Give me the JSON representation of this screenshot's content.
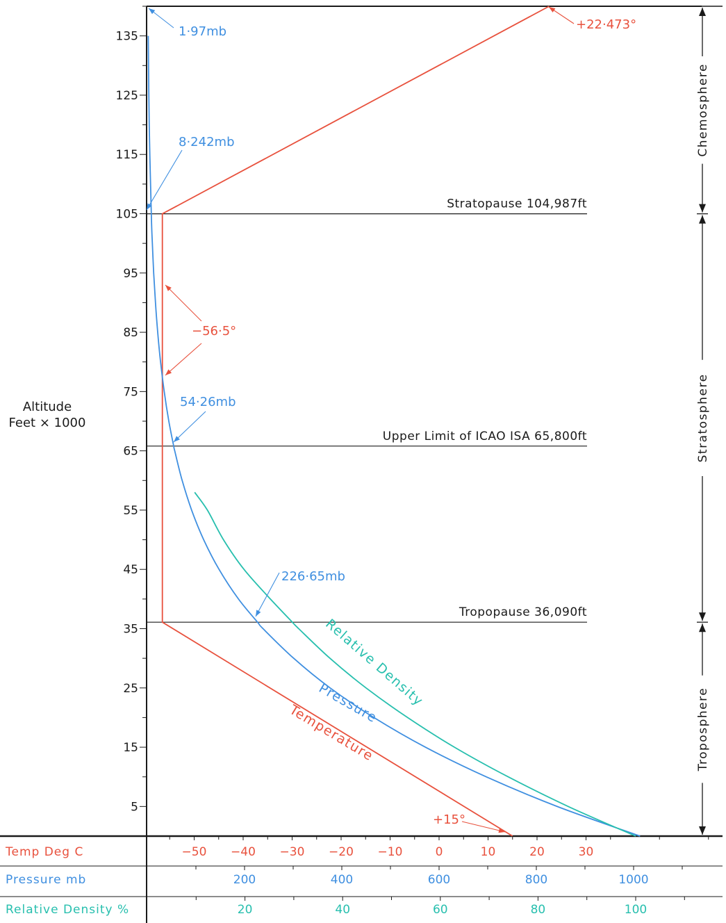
{
  "colors": {
    "temperature": "#e8513d",
    "pressure": "#3f8fe0",
    "density": "#27bfae",
    "ink": "#1a1a1a"
  },
  "chart_data": {
    "type": "line",
    "title": "",
    "ylabel_line1": "Altitude",
    "ylabel_line2": "Feet × 1000",
    "ylim": [
      0,
      140
    ],
    "yticks": [
      5,
      15,
      25,
      35,
      45,
      55,
      65,
      75,
      85,
      95,
      105,
      115,
      125,
      135
    ],
    "axes": {
      "temperature": {
        "label": "Temp Deg C",
        "ticks": [
          -50,
          -40,
          -30,
          -20,
          -10,
          0,
          10,
          20,
          30
        ],
        "tick_labels": [
          "−50",
          "−40",
          "−30",
          "−20",
          "−10",
          "0",
          "10",
          "20",
          "30"
        ]
      },
      "pressure": {
        "label": "Pressure mb",
        "ticks": [
          200,
          400,
          600,
          800,
          1000
        ],
        "tick_labels": [
          "200",
          "400",
          "600",
          "800",
          "1000"
        ]
      },
      "density": {
        "label": "Relative Density %",
        "ticks": [
          20,
          40,
          60,
          80,
          100
        ],
        "tick_labels": [
          "20",
          "40",
          "60",
          "80",
          "100"
        ]
      }
    },
    "series": [
      {
        "name": "Temperature",
        "axis": "temperature",
        "points": [
          [
            15,
            0
          ],
          [
            -56.5,
            36.09
          ],
          [
            -56.5,
            104.987
          ],
          [
            22.473,
            140
          ]
        ]
      },
      {
        "name": "Pressure",
        "axis": "pressure",
        "points": [
          [
            1013.25,
            0
          ],
          [
            843,
            5
          ],
          [
            697,
            10
          ],
          [
            572,
            15
          ],
          [
            466,
            20
          ],
          [
            376,
            25
          ],
          [
            301,
            30
          ],
          [
            238,
            35
          ],
          [
            226.65,
            36.09
          ],
          [
            187.5,
            40
          ],
          [
            147.5,
            45
          ],
          [
            116,
            50
          ],
          [
            91.2,
            55
          ],
          [
            71.7,
            60
          ],
          [
            56.4,
            65
          ],
          [
            54.26,
            65.8
          ],
          [
            44.3,
            70
          ],
          [
            34.8,
            75
          ],
          [
            27.3,
            80
          ],
          [
            21.4,
            85
          ],
          [
            16.8,
            90
          ],
          [
            13.2,
            95
          ],
          [
            10.4,
            100
          ],
          [
            8.242,
            104.987
          ],
          [
            4.0,
            120
          ],
          [
            1.97,
            135
          ]
        ]
      },
      {
        "name": "Relative Density",
        "axis": "density",
        "points": [
          [
            100,
            0
          ],
          [
            86.2,
            5
          ],
          [
            73.9,
            10
          ],
          [
            62.9,
            15
          ],
          [
            53.3,
            20
          ],
          [
            44.8,
            25
          ],
          [
            37.4,
            30
          ],
          [
            31.0,
            35
          ],
          [
            29.7,
            36.09
          ],
          [
            25.2,
            40
          ],
          [
            19.8,
            45
          ],
          [
            15.6,
            50
          ],
          [
            12.3,
            55
          ],
          [
            9.7,
            58
          ]
        ]
      }
    ],
    "reference_lines": [
      {
        "altitude": 104.987,
        "label": "Stratopause 104,987ft"
      },
      {
        "altitude": 65.8,
        "label": "Upper Limit of ICAO ISA 65,800ft"
      },
      {
        "altitude": 36.09,
        "label": "Tropopause 36,090ft"
      }
    ],
    "layers": [
      {
        "name": "Chemosphere",
        "from": 104.987,
        "to": 140
      },
      {
        "name": "Stratosphere",
        "from": 36.09,
        "to": 104.987
      },
      {
        "name": "Troposphere",
        "from": 0,
        "to": 36.09
      }
    ],
    "annotations": [
      {
        "text": "1·97mb",
        "color": "pressure"
      },
      {
        "text": "8·242mb",
        "color": "pressure"
      },
      {
        "text": "54·26mb",
        "color": "pressure"
      },
      {
        "text": "226·65mb",
        "color": "pressure"
      },
      {
        "text": "+22·473°",
        "color": "temperature"
      },
      {
        "text": "−56·5°",
        "color": "temperature"
      },
      {
        "text": "+15°",
        "color": "temperature"
      }
    ]
  }
}
